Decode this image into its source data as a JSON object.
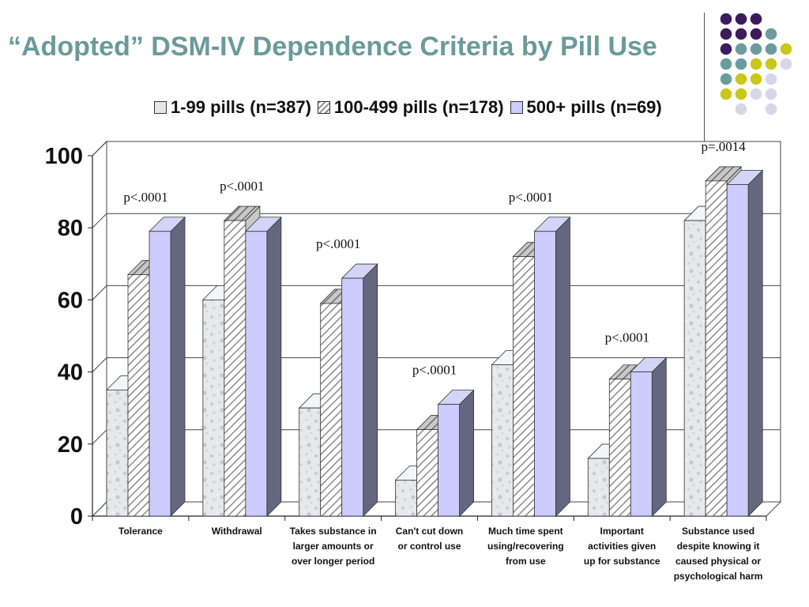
{
  "slide": {
    "title": "“Adopted” DSM-IV Dependence Criteria by Pill Use"
  },
  "legend": [
    {
      "label": "1-99 pills (n=387)",
      "swatch": "speckled-gray"
    },
    {
      "label": "100-499 pills (n=178)",
      "swatch": "diagonal-hatch"
    },
    {
      "label": "500+ pills (n=69)",
      "swatch": "lavender"
    }
  ],
  "chart_data": {
    "type": "bar",
    "categories": [
      "Tolerance",
      "Withdrawal",
      "Takes substance in larger amounts or over longer period",
      "Can't cut down or control use",
      "Much time spent using/recovering from use",
      "Important activities given up for substance",
      "Substance used despite knowing it caused physical or psychological harm"
    ],
    "category_lines": [
      [
        "Tolerance"
      ],
      [
        "Withdrawal"
      ],
      [
        "Takes substance in",
        "larger amounts or",
        "over longer period"
      ],
      [
        "Can't cut down",
        "or control use"
      ],
      [
        "Much time spent",
        "using/recovering",
        "from use"
      ],
      [
        "Important",
        "activities given",
        "up for substance"
      ],
      [
        "Substance used",
        "despite knowing it",
        "caused physical or",
        "psychological harm"
      ]
    ],
    "series": [
      {
        "name": "1-99 pills (n=387)",
        "values": [
          35,
          60,
          30,
          10,
          42,
          16,
          82
        ],
        "color": "#e4e6e8"
      },
      {
        "name": "100-499 pills (n=178)",
        "values": [
          67,
          82,
          59,
          24,
          72,
          38,
          93
        ],
        "color": "#ffffff"
      },
      {
        "name": "500+ pills (n=69)",
        "values": [
          79,
          79,
          66,
          31,
          79,
          40,
          92
        ],
        "color": "#ccccff"
      }
    ],
    "annotations": [
      "p<.0001",
      "p<.0001",
      "p<.0001",
      "p<.0001",
      "p<.0001",
      "p<.0001",
      "p=.0014"
    ],
    "yticks": [
      0,
      20,
      40,
      60,
      80,
      100
    ],
    "ylim": [
      0,
      100
    ],
    "grid": true,
    "legend_position": "top"
  },
  "decor": {
    "dot_rows": [
      [
        "purple",
        "purple",
        "purple",
        "none",
        "none"
      ],
      [
        "purple",
        "purple",
        "purple",
        "teal",
        "none"
      ],
      [
        "purple",
        "teal",
        "teal",
        "teal",
        "yellow"
      ],
      [
        "teal",
        "teal",
        "yellow",
        "yellow",
        "lavender"
      ],
      [
        "teal",
        "yellow",
        "yellow",
        "lavender",
        "none"
      ],
      [
        "yellow",
        "yellow",
        "lavender",
        "lavender",
        "none"
      ],
      [
        "none",
        "lavender",
        "none",
        "lavender",
        "none"
      ]
    ],
    "colors": {
      "purple": "#3d1a5e",
      "teal": "#6b9c9d",
      "yellow": "#c8c81a",
      "lavender": "#d7d7e8",
      "title": "#6a9a9c"
    }
  }
}
